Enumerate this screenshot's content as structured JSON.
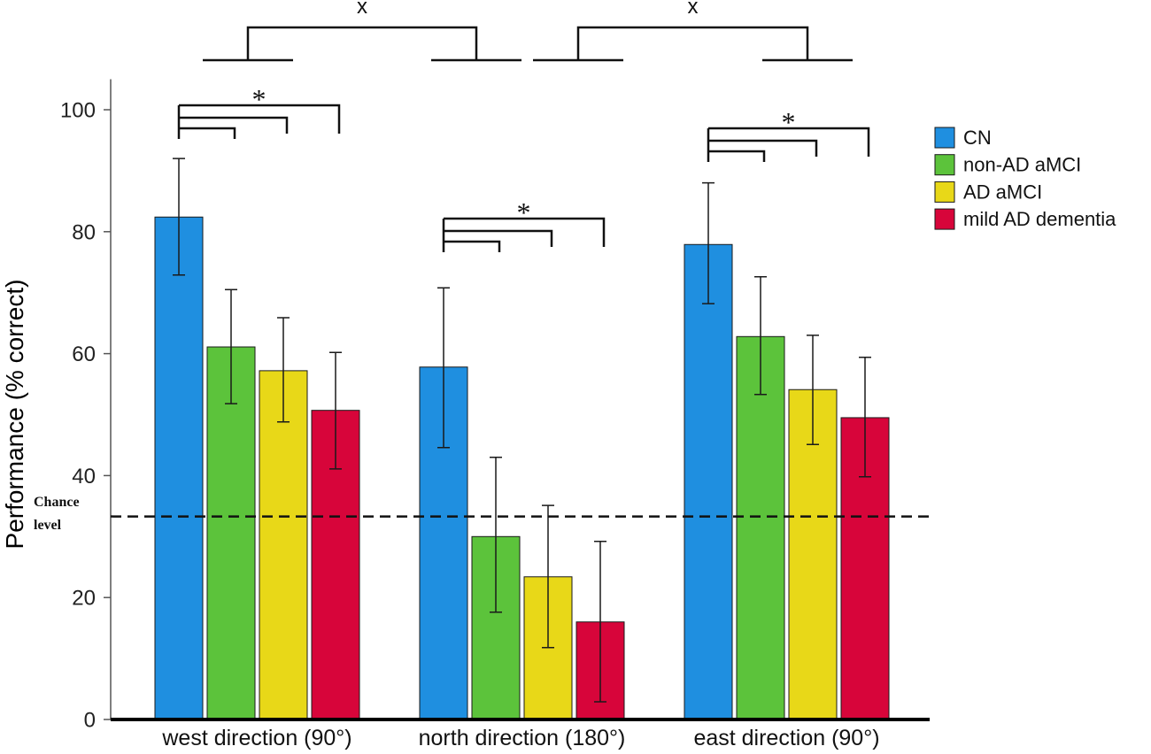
{
  "chart_data": {
    "type": "bar",
    "title": "",
    "xlabel": "",
    "ylabel": "Performance (% correct)",
    "ylim": [
      0,
      105
    ],
    "yticks": [
      0,
      20,
      40,
      60,
      80,
      100
    ],
    "categories": [
      "west direction (90°)",
      "north direction (180°)",
      "east direction (90°)"
    ],
    "legend_position": "right",
    "series": [
      {
        "name": "CN",
        "color": "#1f8fe0",
        "values": [
          82.4,
          57.8,
          77.9
        ],
        "error_low": [
          72.9,
          44.6,
          68.2
        ],
        "error_high": [
          92.0,
          70.8,
          88.0
        ]
      },
      {
        "name": "non-AD aMCI",
        "color": "#5cc33b",
        "values": [
          61.1,
          30.0,
          62.8
        ],
        "error_low": [
          51.8,
          17.6,
          53.3
        ],
        "error_high": [
          70.5,
          43.0,
          72.6
        ]
      },
      {
        "name": "AD aMCI",
        "color": "#e8d818",
        "values": [
          57.2,
          23.4,
          54.1
        ],
        "error_low": [
          48.8,
          11.8,
          45.1
        ],
        "error_high": [
          65.9,
          35.1,
          63.0
        ]
      },
      {
        "name": "mild AD dementia",
        "color": "#d7053a",
        "values": [
          50.7,
          16.0,
          49.5
        ],
        "error_low": [
          41.1,
          2.9,
          39.8
        ],
        "error_high": [
          60.2,
          29.2,
          59.4
        ]
      }
    ],
    "reference_line": {
      "value": 33.3,
      "label": [
        "Chance",
        "level"
      ]
    },
    "significance": {
      "within_group": [
        {
          "category_index": 0,
          "reference_series": 0,
          "compared_series": [
            1,
            2,
            3
          ],
          "label": "*"
        },
        {
          "category_index": 1,
          "reference_series": 0,
          "compared_series": [
            1,
            2,
            3
          ],
          "label": "*"
        },
        {
          "category_index": 2,
          "reference_series": 0,
          "compared_series": [
            1,
            2,
            3
          ],
          "label": "*"
        }
      ],
      "between_groups": [
        {
          "from_category": 0,
          "to_category": 1,
          "label": "x"
        },
        {
          "from_category": 1,
          "to_category": 2,
          "label": "x"
        }
      ]
    }
  }
}
